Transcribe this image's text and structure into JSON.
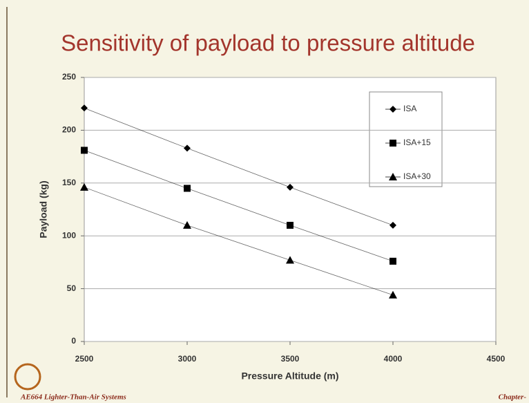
{
  "chart_data": {
    "type": "line",
    "title": "Sensitivity of payload to pressure altitude",
    "xlabel": "Pressure Altitude (m)",
    "ylabel": "Payload (kg)",
    "x": [
      2500,
      3000,
      3500,
      4000
    ],
    "series": [
      {
        "name": "ISA",
        "color": "#000000",
        "marker": "diamond",
        "values": [
          221,
          183,
          146,
          110
        ]
      },
      {
        "name": "ISA+15",
        "color": "#000000",
        "marker": "square",
        "values": [
          181,
          145,
          110,
          76
        ]
      },
      {
        "name": "ISA+30",
        "color": "#000000",
        "marker": "triangle",
        "values": [
          146,
          110,
          77,
          44
        ]
      }
    ],
    "xlim": [
      2500,
      4500
    ],
    "xticks": [
      2500,
      3000,
      3500,
      4000,
      4500
    ],
    "ylim": [
      0,
      250
    ],
    "yticks": [
      0,
      50,
      100,
      150,
      200,
      250
    ],
    "grid": true,
    "legend": "upper right"
  },
  "footer": {
    "left": "AE664 Lighter-Than-Air Systems",
    "right": "Chapter-"
  }
}
